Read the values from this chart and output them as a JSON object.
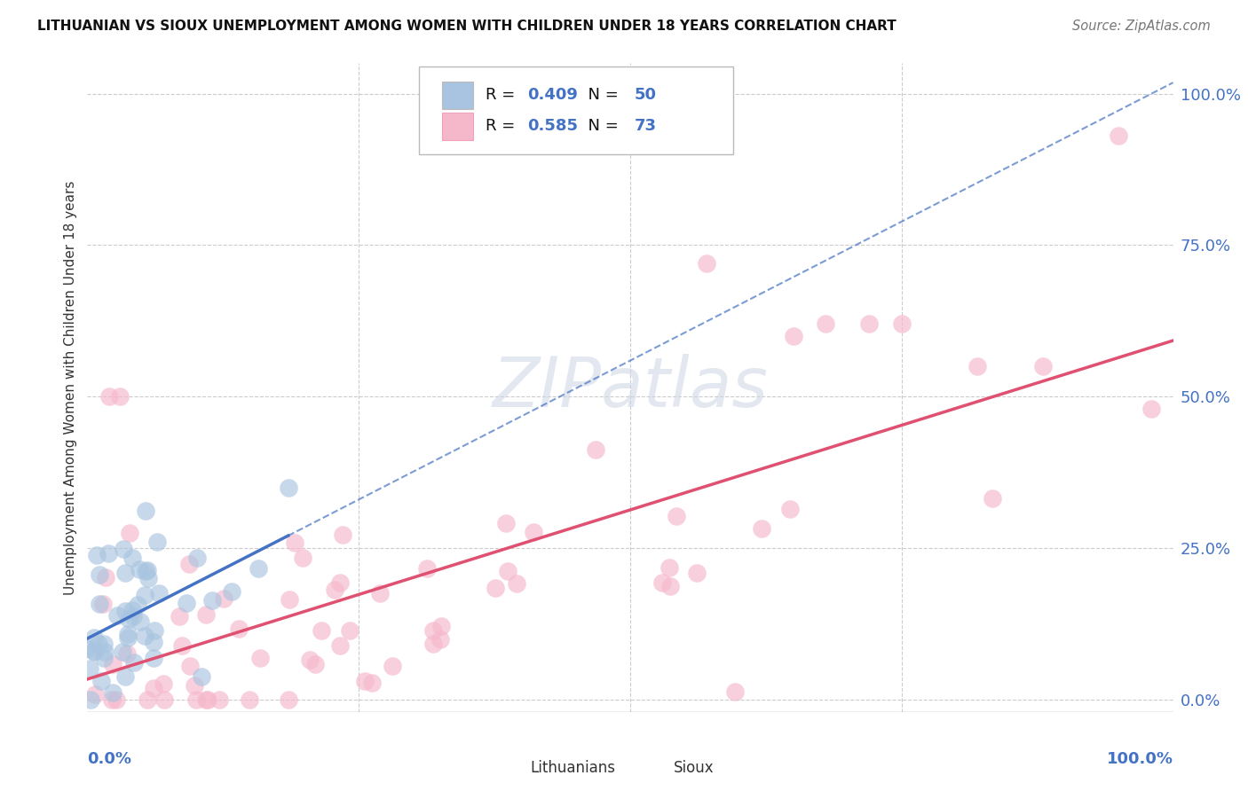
{
  "title": "LITHUANIAN VS SIOUX UNEMPLOYMENT AMONG WOMEN WITH CHILDREN UNDER 18 YEARS CORRELATION CHART",
  "source": "Source: ZipAtlas.com",
  "ylabel": "Unemployment Among Women with Children Under 18 years",
  "r_lithuanian": 0.409,
  "n_lithuanian": 50,
  "r_sioux": 0.585,
  "n_sioux": 73,
  "color_lithuanian": "#a8c4e0",
  "color_sioux": "#f5b8cb",
  "color_line_lithuanian": "#4472c4",
  "color_line_sioux": "#e05070",
  "color_blue_text": "#4472c4",
  "ytick_labels": [
    "0.0%",
    "25.0%",
    "50.0%",
    "75.0%",
    "100.0%"
  ],
  "ytick_positions": [
    0.0,
    0.25,
    0.5,
    0.75,
    1.0
  ],
  "xlim": [
    0.0,
    1.0
  ],
  "ylim": [
    -0.02,
    1.05
  ]
}
